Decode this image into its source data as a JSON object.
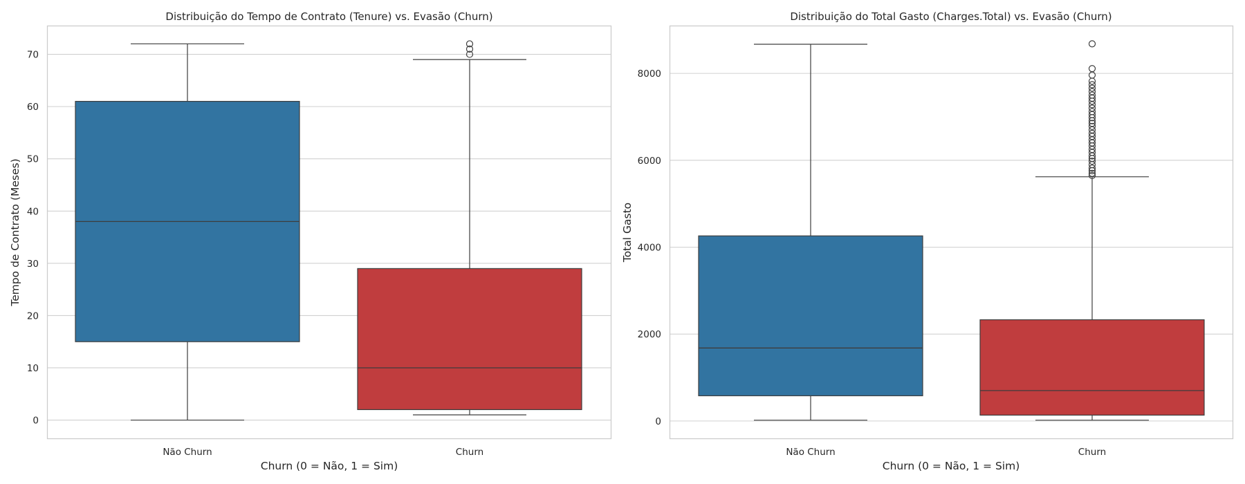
{
  "chart_data": [
    {
      "type": "box",
      "title": "Distribuição do Tempo de Contrato (Tenure) vs. Evasão (Churn)",
      "xlabel": "Churn (0 = Não, 1 = Sim)",
      "ylabel": "Tempo de Contrato (Meses)",
      "ylim": [
        -3.5,
        75.5
      ],
      "yticks": [
        0,
        10,
        20,
        30,
        40,
        50,
        60,
        70
      ],
      "grid": "horizontal",
      "categories": [
        "Não Churn",
        "Churn"
      ],
      "boxes": [
        {
          "category": "Não Churn",
          "color": "#3274a1",
          "whisker_low": 0,
          "q1": 15,
          "median": 38,
          "q3": 61,
          "whisker_high": 72,
          "outliers": []
        },
        {
          "category": "Churn",
          "color": "#c03d3e",
          "whisker_low": 1,
          "q1": 2,
          "median": 10,
          "q3": 29,
          "whisker_high": 69,
          "outliers": [
            70,
            71,
            72
          ]
        }
      ]
    },
    {
      "type": "box",
      "title": "Distribuição do Total Gasto (Charges.Total) vs. Evasão (Churn)",
      "xlabel": "Churn (0 = Não, 1 = Sim)",
      "ylabel": "Total Gasto",
      "ylim": [
        -400,
        9100
      ],
      "yticks": [
        0,
        2000,
        4000,
        6000,
        8000
      ],
      "grid": "horizontal",
      "categories": [
        "Não Churn",
        "Churn"
      ],
      "boxes": [
        {
          "category": "Não Churn",
          "color": "#3274a1",
          "whisker_low": 19,
          "q1": 580,
          "median": 1680,
          "q3": 4260,
          "whisker_high": 8670,
          "outliers": []
        },
        {
          "category": "Churn",
          "color": "#c03d3e",
          "whisker_low": 19,
          "q1": 135,
          "median": 700,
          "q3": 2330,
          "whisker_high": 5620,
          "outliers": [
            5650,
            5700,
            5760,
            5820,
            5900,
            5980,
            6040,
            6100,
            6180,
            6250,
            6330,
            6400,
            6470,
            6550,
            6620,
            6700,
            6780,
            6850,
            6910,
            6980,
            7050,
            7120,
            7200,
            7280,
            7360,
            7430,
            7500,
            7580,
            7660,
            7740,
            7820,
            7960,
            8110,
            8680
          ]
        }
      ]
    }
  ]
}
